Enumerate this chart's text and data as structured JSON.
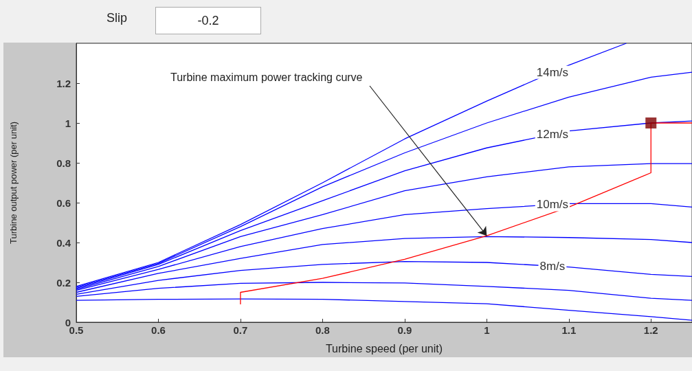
{
  "chart_data": {
    "type": "line",
    "xlabel": "Turbine speed (per unit)",
    "ylabel": "Turbine output power (per unit)",
    "x": [
      0.5,
      0.6,
      0.7,
      0.8,
      0.9,
      1.0,
      1.1,
      1.2,
      1.25
    ],
    "xlim": [
      0.5,
      1.25
    ],
    "xticks": [
      0.5,
      0.6,
      0.7,
      0.8,
      0.9,
      1,
      1.1,
      1.2
    ],
    "ylim": [
      0,
      1.4
    ],
    "yticks": [
      0,
      0.2,
      0.4,
      0.6,
      0.8,
      1,
      1.2
    ],
    "grid": false,
    "legend": false,
    "marker": "none",
    "line_style": "solid",
    "annotations": [
      "Slip",
      "-0.2",
      {
        "text": "Turbine maximum power tracking curve",
        "x": 1.0,
        "y": 0.434
      }
    ],
    "series": [
      {
        "name": "14m/s",
        "color": "#0000ff",
        "x": [
          0.5,
          0.6,
          0.7,
          0.8,
          0.9,
          1.0,
          1.1,
          1.17
        ],
        "values": [
          0.18,
          0.3,
          0.49,
          0.7,
          0.92,
          1.11,
          1.29,
          1.4
        ]
      },
      {
        "color": "#0000ff",
        "values": [
          0.175,
          0.295,
          0.48,
          0.68,
          0.85,
          1.0,
          1.13,
          1.23,
          1.255
        ]
      },
      {
        "name": "12m/s",
        "color": "#0000ff",
        "values": [
          0.17,
          0.29,
          0.46,
          0.61,
          0.76,
          0.875,
          0.96,
          1.0,
          1.01
        ]
      },
      {
        "color": "#0000ff",
        "values": [
          0.165,
          0.28,
          0.43,
          0.54,
          0.66,
          0.73,
          0.78,
          0.796,
          0.796
        ]
      },
      {
        "name": "10m/s",
        "color": "#0000ff",
        "values": [
          0.16,
          0.265,
          0.38,
          0.47,
          0.54,
          0.57,
          0.595,
          0.595,
          0.578
        ]
      },
      {
        "color": "#0000ff",
        "values": [
          0.15,
          0.245,
          0.32,
          0.39,
          0.42,
          0.43,
          0.425,
          0.415,
          0.4
        ]
      },
      {
        "name": "8m/s",
        "color": "#0000ff",
        "values": [
          0.14,
          0.21,
          0.26,
          0.29,
          0.305,
          0.3,
          0.277,
          0.24,
          0.23
        ]
      },
      {
        "color": "#0000ff",
        "values": [
          0.13,
          0.17,
          0.195,
          0.2,
          0.197,
          0.18,
          0.16,
          0.12,
          0.11
        ]
      },
      {
        "color": "#0000ff",
        "values": [
          0.11,
          0.115,
          0.117,
          0.115,
          0.104,
          0.093,
          0.06,
          0.028,
          0.01
        ]
      },
      {
        "color": "#ff0000",
        "x": [
          0.7,
          0.7,
          0.8,
          0.9,
          1.0,
          1.1,
          1.2,
          1.2,
          1.25
        ],
        "values": [
          0.09,
          0.15,
          0.22,
          0.316,
          0.434,
          0.578,
          0.75,
          1.0,
          1.0
        ]
      },
      {
        "type": "scatter",
        "marker": "square",
        "color": "#800000",
        "x": [
          1.2
        ],
        "values": [
          1.0
        ]
      }
    ]
  }
}
